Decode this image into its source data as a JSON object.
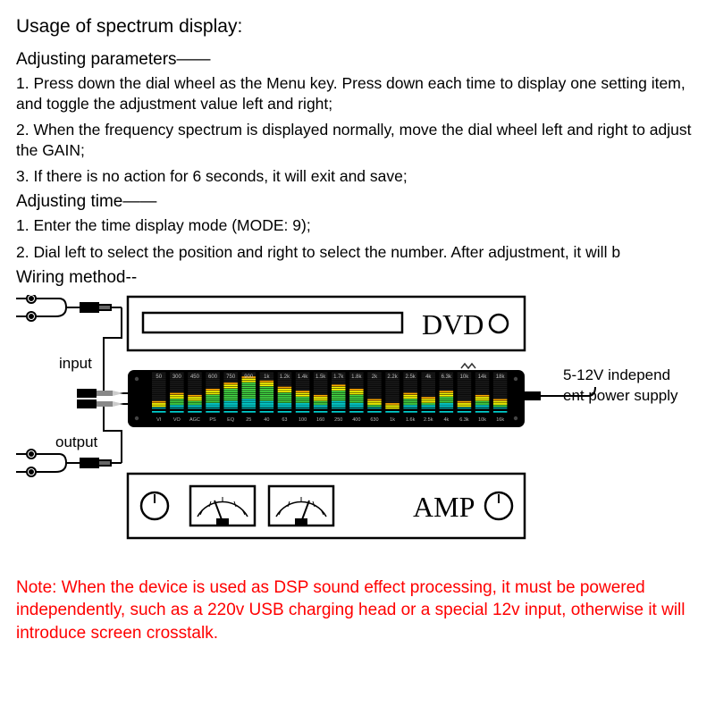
{
  "title": "Usage of spectrum display:",
  "section1_title": "Adjusting parameters——",
  "p1": "1. Press down the dial wheel as the Menu key. Press down each time to display one setting item, and toggle the adjustment value left and right;",
  "p2": "2. When the frequency spectrum is displayed normally, move the dial wheel left and right to adjust the GAIN;",
  "p3": "3. If there is no action for 6 seconds, it will exit and save;",
  "section2_title": "Adjusting time——",
  "p4": "1. Enter the time display mode (MODE: 9);",
  "p5": "2. Dial left to select the position and right to select the number. After adjustment, it will b",
  "section3_title": "Wiring method--",
  "input_label": "input",
  "output_label": "output",
  "dvd_label": "DVD",
  "amp_label": "AMP",
  "power_label_1": "5-12V independ",
  "power_label_2": "ent power supply",
  "note": "Note: When the device is used as DSP sound effect processing, it must be powered independently, such as a 220v USB charging head or a special 12v input, otherwise it will introduce screen crosstalk.",
  "spectrum": {
    "top_freq": [
      "50",
      "300",
      "450",
      "600",
      "750",
      "900",
      "1k",
      "1.2k",
      "1.4k",
      "1.5k",
      "1.7k",
      "1.8k",
      "2k",
      "2.2k",
      "2.5k",
      "4k",
      "6.3k",
      "10k",
      "14k",
      "18k"
    ],
    "heights": [
      4,
      8,
      7,
      10,
      13,
      16,
      14,
      11,
      9,
      7,
      12,
      10,
      5,
      3,
      8,
      6,
      9,
      4,
      7,
      5
    ],
    "peak_color": "#ffaa00",
    "high_color": "#ffff00",
    "mid_color": "#44dd44",
    "low_color": "#00dddd",
    "base_color": "#009999",
    "bg": "#000000",
    "max_segments": 18,
    "bottom_labels": [
      "VI",
      "VO",
      "AGC",
      "PS",
      "EQ",
      "25",
      "40",
      "63",
      "100",
      "160",
      "250",
      "400",
      "630",
      "1k",
      "1.6k",
      "2.5k",
      "4k",
      "6.3k",
      "10k",
      "16k"
    ]
  }
}
